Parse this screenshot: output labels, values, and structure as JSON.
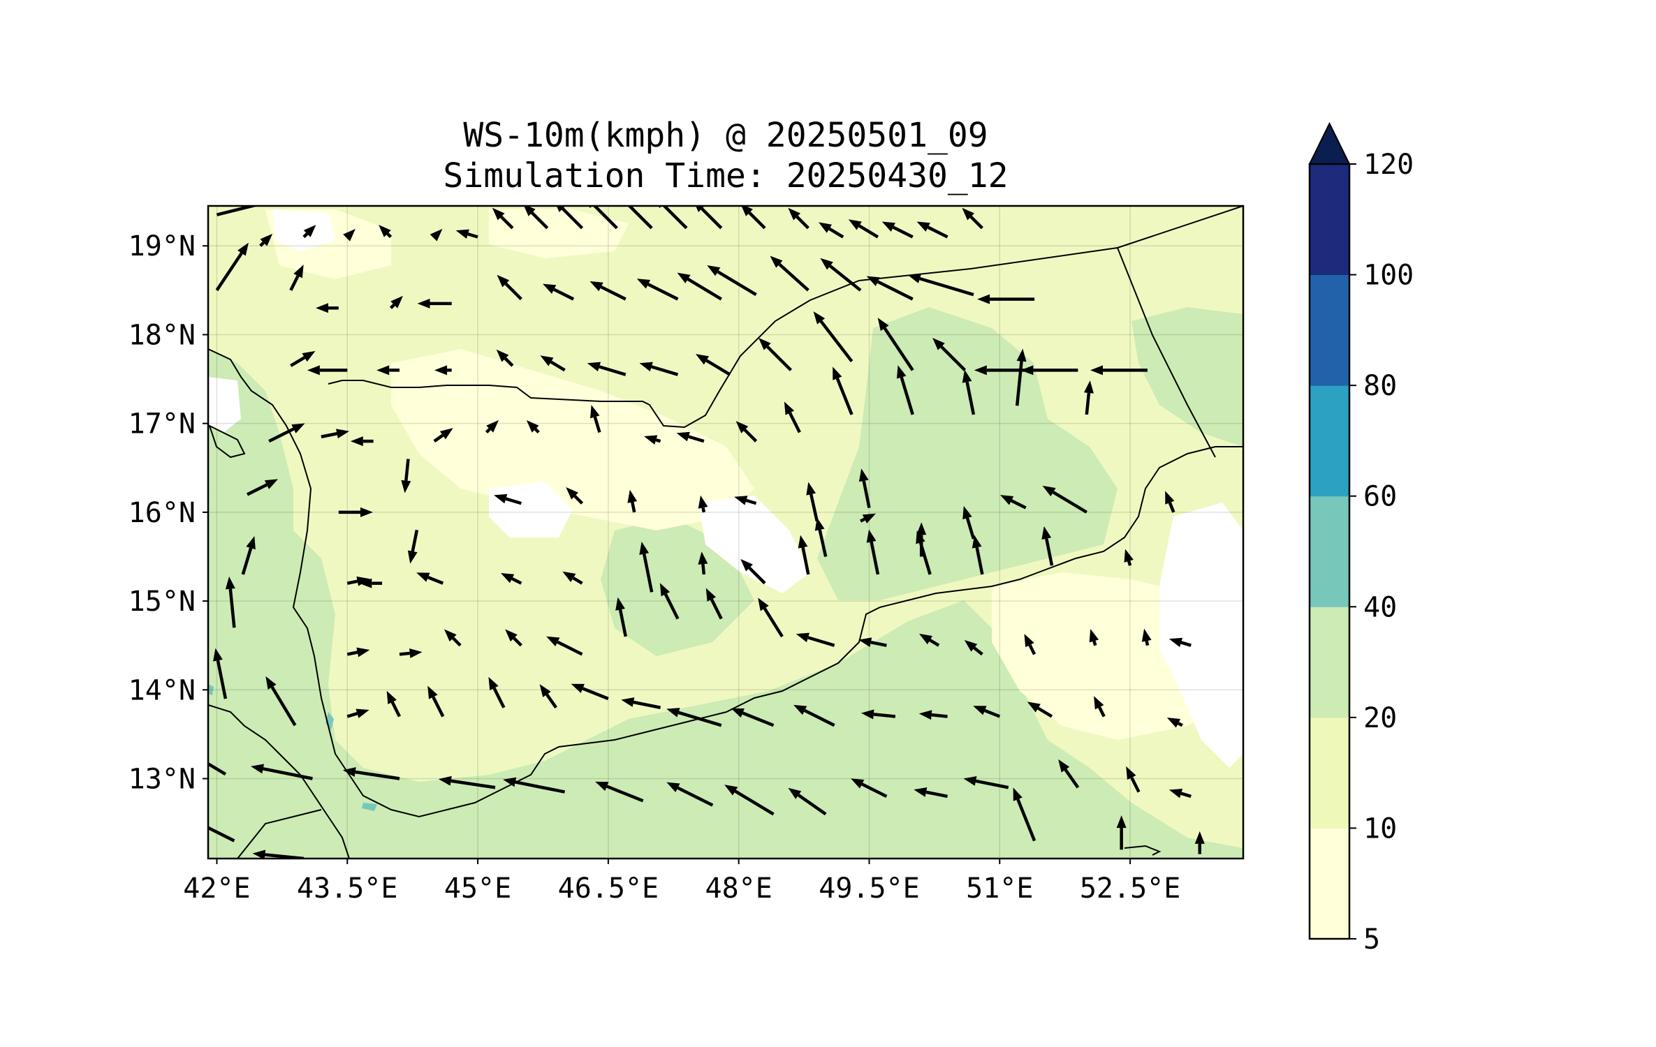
{
  "title": {
    "line1": "WS-10m(kmph) @ 20250501_09",
    "line2": "Simulation Time: 20250430_12"
  },
  "map": {
    "lon_range": [
      41.9,
      53.8
    ],
    "lat_range": [
      12.1,
      19.45
    ],
    "x_ticks": [
      {
        "value": 42,
        "label": "42°E"
      },
      {
        "value": 43.5,
        "label": "43.5°E"
      },
      {
        "value": 45,
        "label": "45°E"
      },
      {
        "value": 46.5,
        "label": "46.5°E"
      },
      {
        "value": 48,
        "label": "48°E"
      },
      {
        "value": 49.5,
        "label": "49.5°E"
      },
      {
        "value": 51,
        "label": "51°E"
      },
      {
        "value": 52.5,
        "label": "52.5°E"
      }
    ],
    "y_ticks": [
      {
        "value": 19,
        "label": "19°N"
      },
      {
        "value": 18,
        "label": "18°N"
      },
      {
        "value": 17,
        "label": "17°N"
      },
      {
        "value": 16,
        "label": "16°N"
      },
      {
        "value": 15,
        "label": "15°N"
      },
      {
        "value": 14,
        "label": "14°N"
      },
      {
        "value": 13,
        "label": "13°N"
      }
    ],
    "grid": true,
    "background_field_color": "#f0f8c2"
  },
  "colorbar": {
    "extend": "max",
    "levels": [
      {
        "from": 5,
        "to": 10,
        "color": "#ffffd9"
      },
      {
        "from": 10,
        "to": 20,
        "color": "#eef8b8"
      },
      {
        "from": 20,
        "to": 40,
        "color": "#cdebb4"
      },
      {
        "from": 40,
        "to": 60,
        "color": "#77c8bb"
      },
      {
        "from": 60,
        "to": 80,
        "color": "#2ca1c2"
      },
      {
        "from": 80,
        "to": 100,
        "color": "#2262aa"
      },
      {
        "from": 100,
        "to": 120,
        "color": "#1d2b7d"
      }
    ],
    "extend_color": "#0b1e50",
    "tick_labels": [
      "5",
      "10",
      "20",
      "40",
      "60",
      "80",
      "100",
      "120"
    ]
  },
  "chart_data": {
    "type": "map",
    "variable": "WS-10m(kmph)",
    "vector_units": "kmph",
    "wind_vectors": [
      [
        42,
        19.35,
        4,
        1,
        12
      ],
      [
        42.5,
        19.0,
        1,
        1,
        3
      ],
      [
        43.0,
        19.1,
        1,
        1,
        3
      ],
      [
        43.5,
        19.1,
        1,
        1,
        2
      ],
      [
        44.0,
        19.1,
        -1,
        1,
        3
      ],
      [
        44.5,
        19.1,
        1,
        1,
        2
      ],
      [
        45.0,
        19.1,
        -1,
        0.3,
        4
      ],
      [
        45.4,
        19.2,
        -1,
        1,
        5
      ],
      [
        45.8,
        19.2,
        -1,
        1,
        6
      ],
      [
        46.2,
        19.2,
        -1,
        1,
        7
      ],
      [
        46.6,
        19.2,
        -1,
        1,
        8
      ],
      [
        47.0,
        19.2,
        -1,
        1,
        9
      ],
      [
        47.4,
        19.2,
        -1,
        1,
        8
      ],
      [
        47.8,
        19.2,
        -1,
        1,
        7
      ],
      [
        48.3,
        19.2,
        -1,
        1,
        6
      ],
      [
        48.8,
        19.2,
        -1,
        1,
        5
      ],
      [
        49.2,
        19.1,
        -1,
        0.6,
        5
      ],
      [
        49.6,
        19.1,
        -1,
        0.6,
        6
      ],
      [
        50.0,
        19.1,
        -1,
        0.5,
        6
      ],
      [
        50.4,
        19.1,
        -1,
        0.5,
        6
      ],
      [
        50.8,
        19.2,
        -1,
        1,
        5
      ],
      [
        42,
        18.5,
        1,
        1.5,
        10
      ],
      [
        42.85,
        18.5,
        1,
        2,
        5
      ],
      [
        43.4,
        18.3,
        -1,
        0,
        4
      ],
      [
        44.0,
        18.3,
        1,
        1,
        3
      ],
      [
        44.7,
        18.35,
        -1,
        0,
        6
      ],
      [
        45.5,
        18.4,
        -1,
        1,
        6
      ],
      [
        46.1,
        18.4,
        -1,
        0.5,
        6
      ],
      [
        46.7,
        18.4,
        -1,
        0.5,
        7
      ],
      [
        47.3,
        18.4,
        -1,
        0.5,
        8
      ],
      [
        47.8,
        18.4,
        -1,
        0.6,
        9
      ],
      [
        48.2,
        18.45,
        -1,
        0.6,
        10
      ],
      [
        48.8,
        18.5,
        -1,
        0.9,
        9
      ],
      [
        49.4,
        18.5,
        -1,
        0.8,
        9
      ],
      [
        50.0,
        18.4,
        -1,
        0.5,
        9
      ],
      [
        50.7,
        18.45,
        -1,
        0.3,
        12
      ],
      [
        51.4,
        18.4,
        -1,
        0,
        10
      ],
      [
        42.85,
        17.65,
        1,
        0.6,
        5
      ],
      [
        43.5,
        17.6,
        -1,
        0,
        7
      ],
      [
        44.1,
        17.6,
        -1,
        0,
        4
      ],
      [
        44.7,
        17.6,
        -1,
        0,
        3
      ],
      [
        45.4,
        17.65,
        -1,
        1,
        4
      ],
      [
        46.0,
        17.6,
        -1,
        0.6,
        5
      ],
      [
        46.7,
        17.55,
        -1,
        0.3,
        7
      ],
      [
        47.3,
        17.55,
        -1,
        0.3,
        7
      ],
      [
        47.9,
        17.55,
        -1,
        0.6,
        7
      ],
      [
        48.6,
        17.6,
        -1,
        1,
        8
      ],
      [
        49.3,
        17.7,
        -1,
        1.3,
        11
      ],
      [
        50.0,
        17.6,
        -1,
        1.5,
        11
      ],
      [
        50.6,
        17.6,
        -1,
        1,
        8
      ],
      [
        51.3,
        17.6,
        -1,
        0,
        9
      ],
      [
        51.9,
        17.6,
        -1,
        0,
        10
      ],
      [
        52.7,
        17.6,
        -1,
        0,
        10
      ],
      [
        42.6,
        16.8,
        1,
        0.5,
        7
      ],
      [
        43.2,
        16.85,
        1,
        0.2,
        5
      ],
      [
        43.8,
        16.8,
        -1,
        0,
        4
      ],
      [
        44.2,
        16.6,
        -0.1,
        -1,
        6
      ],
      [
        44.5,
        16.8,
        1,
        0.7,
        4
      ],
      [
        45.1,
        16.9,
        1,
        1,
        3
      ],
      [
        45.7,
        16.9,
        -1,
        1,
        3
      ],
      [
        46.4,
        16.9,
        -0.3,
        1,
        5
      ],
      [
        47.1,
        16.8,
        -1,
        0.3,
        3
      ],
      [
        47.6,
        16.8,
        -1,
        0.3,
        5
      ],
      [
        48.2,
        16.8,
        -1,
        1,
        5
      ],
      [
        48.7,
        16.9,
        -0.5,
        1,
        6
      ],
      [
        49.3,
        17.1,
        -0.4,
        1,
        9
      ],
      [
        50.0,
        17.1,
        -0.3,
        1,
        9
      ],
      [
        50.7,
        17.1,
        -0.2,
        1,
        8
      ],
      [
        51.2,
        17.2,
        0.1,
        1,
        10
      ],
      [
        52.0,
        17.1,
        0.1,
        1,
        6
      ],
      [
        42.35,
        16.2,
        1,
        0.5,
        6
      ],
      [
        43.4,
        16.0,
        1,
        0,
        6
      ],
      [
        44.3,
        15.8,
        -0.2,
        -1,
        6
      ],
      [
        45.5,
        16.1,
        -1,
        0.3,
        5
      ],
      [
        46.2,
        16.1,
        -1,
        1,
        4
      ],
      [
        46.8,
        16.0,
        -0.2,
        1,
        4
      ],
      [
        47.6,
        16.0,
        -0.2,
        1,
        3
      ],
      [
        48.2,
        16.1,
        -1,
        0.3,
        4
      ],
      [
        48.9,
        15.9,
        -0.2,
        0.9,
        7
      ],
      [
        49.4,
        15.9,
        1,
        0.5,
        3
      ],
      [
        49.5,
        16.05,
        -0.2,
        1,
        7
      ],
      [
        50.1,
        15.5,
        0,
        1,
        6
      ],
      [
        50.7,
        15.7,
        -0.3,
        1,
        6
      ],
      [
        51.3,
        16.05,
        -1,
        0.5,
        5
      ],
      [
        52.0,
        16.0,
        -1,
        0.6,
        9
      ],
      [
        53.0,
        16.0,
        -0.4,
        1,
        4
      ],
      [
        42.3,
        15.3,
        0.3,
        1,
        7
      ],
      [
        43.5,
        15.2,
        1,
        0.2,
        4
      ],
      [
        43.9,
        15.2,
        -1,
        0,
        4
      ],
      [
        44.6,
        15.2,
        -1,
        0.4,
        5
      ],
      [
        45.5,
        15.2,
        -1,
        0.5,
        4
      ],
      [
        46.2,
        15.2,
        -1,
        0.6,
        4
      ],
      [
        47.0,
        15.1,
        -0.2,
        1,
        9
      ],
      [
        47.6,
        15.3,
        -0.1,
        1,
        4
      ],
      [
        48.3,
        15.2,
        -1,
        1,
        6
      ],
      [
        48.8,
        15.3,
        -0.2,
        1,
        7
      ],
      [
        49.0,
        15.5,
        -0.2,
        0.9,
        7
      ],
      [
        49.6,
        15.3,
        -0.2,
        1,
        8
      ],
      [
        50.2,
        15.3,
        -0.3,
        1,
        8
      ],
      [
        50.8,
        15.3,
        -0.2,
        1,
        7
      ],
      [
        51.6,
        15.4,
        -0.2,
        1,
        7
      ],
      [
        52.5,
        15.4,
        -0.3,
        1,
        3
      ],
      [
        42.2,
        14.7,
        -0.1,
        1,
        9
      ],
      [
        43.5,
        14.4,
        1,
        0.2,
        4
      ],
      [
        44.1,
        14.4,
        1,
        0.1,
        4
      ],
      [
        44.8,
        14.5,
        -1,
        1,
        4
      ],
      [
        45.5,
        14.5,
        -1,
        1,
        4
      ],
      [
        46.2,
        14.4,
        -1,
        0.5,
        7
      ],
      [
        46.7,
        14.6,
        -0.2,
        1,
        7
      ],
      [
        47.3,
        14.8,
        -0.5,
        1,
        7
      ],
      [
        47.8,
        14.8,
        -0.5,
        1,
        6
      ],
      [
        48.5,
        14.6,
        -0.5,
        0.8,
        8
      ],
      [
        49.1,
        14.5,
        -1,
        0.3,
        7
      ],
      [
        49.7,
        14.5,
        -1,
        0.2,
        5
      ],
      [
        50.3,
        14.5,
        -1,
        0.6,
        4
      ],
      [
        50.8,
        14.4,
        -1,
        0.8,
        4
      ],
      [
        51.4,
        14.4,
        -0.5,
        1,
        4
      ],
      [
        52.1,
        14.5,
        -0.3,
        1,
        3
      ],
      [
        52.7,
        14.5,
        -0.2,
        1,
        3
      ],
      [
        53.2,
        14.5,
        -1,
        0.3,
        4
      ],
      [
        42.1,
        13.9,
        -0.2,
        1,
        9
      ],
      [
        42.9,
        13.6,
        -0.6,
        1,
        10
      ],
      [
        43.5,
        13.7,
        1,
        0.3,
        4
      ],
      [
        44.1,
        13.7,
        -0.5,
        1,
        5
      ],
      [
        44.6,
        13.7,
        -0.5,
        1,
        6
      ],
      [
        45.3,
        13.8,
        -0.5,
        1,
        6
      ],
      [
        45.9,
        13.8,
        -0.7,
        1,
        5
      ],
      [
        46.5,
        13.9,
        -1,
        0.4,
        7
      ],
      [
        47.1,
        13.8,
        -1,
        0.2,
        7
      ],
      [
        47.8,
        13.6,
        -1,
        0.3,
        10
      ],
      [
        48.4,
        13.6,
        -1,
        0.4,
        8
      ],
      [
        49.1,
        13.6,
        -1,
        0.5,
        8
      ],
      [
        49.8,
        13.7,
        -1,
        0.1,
        6
      ],
      [
        50.4,
        13.7,
        -1,
        0.1,
        5
      ],
      [
        51.0,
        13.7,
        -1,
        0.4,
        5
      ],
      [
        51.6,
        13.7,
        -1,
        0.6,
        5
      ],
      [
        52.2,
        13.7,
        -0.5,
        1,
        4
      ],
      [
        53.1,
        13.6,
        -1,
        0.5,
        3
      ],
      [
        42.1,
        13.05,
        -1,
        0.6,
        12
      ],
      [
        43.1,
        13.0,
        -1,
        0.2,
        11
      ],
      [
        44.1,
        13.0,
        -1,
        0.15,
        10
      ],
      [
        45.2,
        12.9,
        -1,
        0.15,
        10
      ],
      [
        46.0,
        12.85,
        -1,
        0.2,
        11
      ],
      [
        46.9,
        12.75,
        -1,
        0.4,
        9
      ],
      [
        47.7,
        12.7,
        -1,
        0.5,
        9
      ],
      [
        48.4,
        12.6,
        -1,
        0.6,
        10
      ],
      [
        49.0,
        12.6,
        -1,
        0.7,
        8
      ],
      [
        49.7,
        12.8,
        -1,
        0.5,
        7
      ],
      [
        50.4,
        12.8,
        -1,
        0.2,
        6
      ],
      [
        51.1,
        12.9,
        -1,
        0.2,
        8
      ],
      [
        51.9,
        12.9,
        -0.7,
        1,
        6
      ],
      [
        52.6,
        12.85,
        -0.5,
        1,
        5
      ],
      [
        53.2,
        12.8,
        -1,
        0.3,
        4
      ],
      [
        42.2,
        12.3,
        -1,
        0.5,
        10
      ],
      [
        43.0,
        12.1,
        -1,
        0.1,
        9
      ],
      [
        51.4,
        12.3,
        -0.4,
        1,
        10
      ],
      [
        52.4,
        12.2,
        0,
        1,
        6
      ],
      [
        53.3,
        12.15,
        0,
        1,
        4
      ]
    ]
  }
}
